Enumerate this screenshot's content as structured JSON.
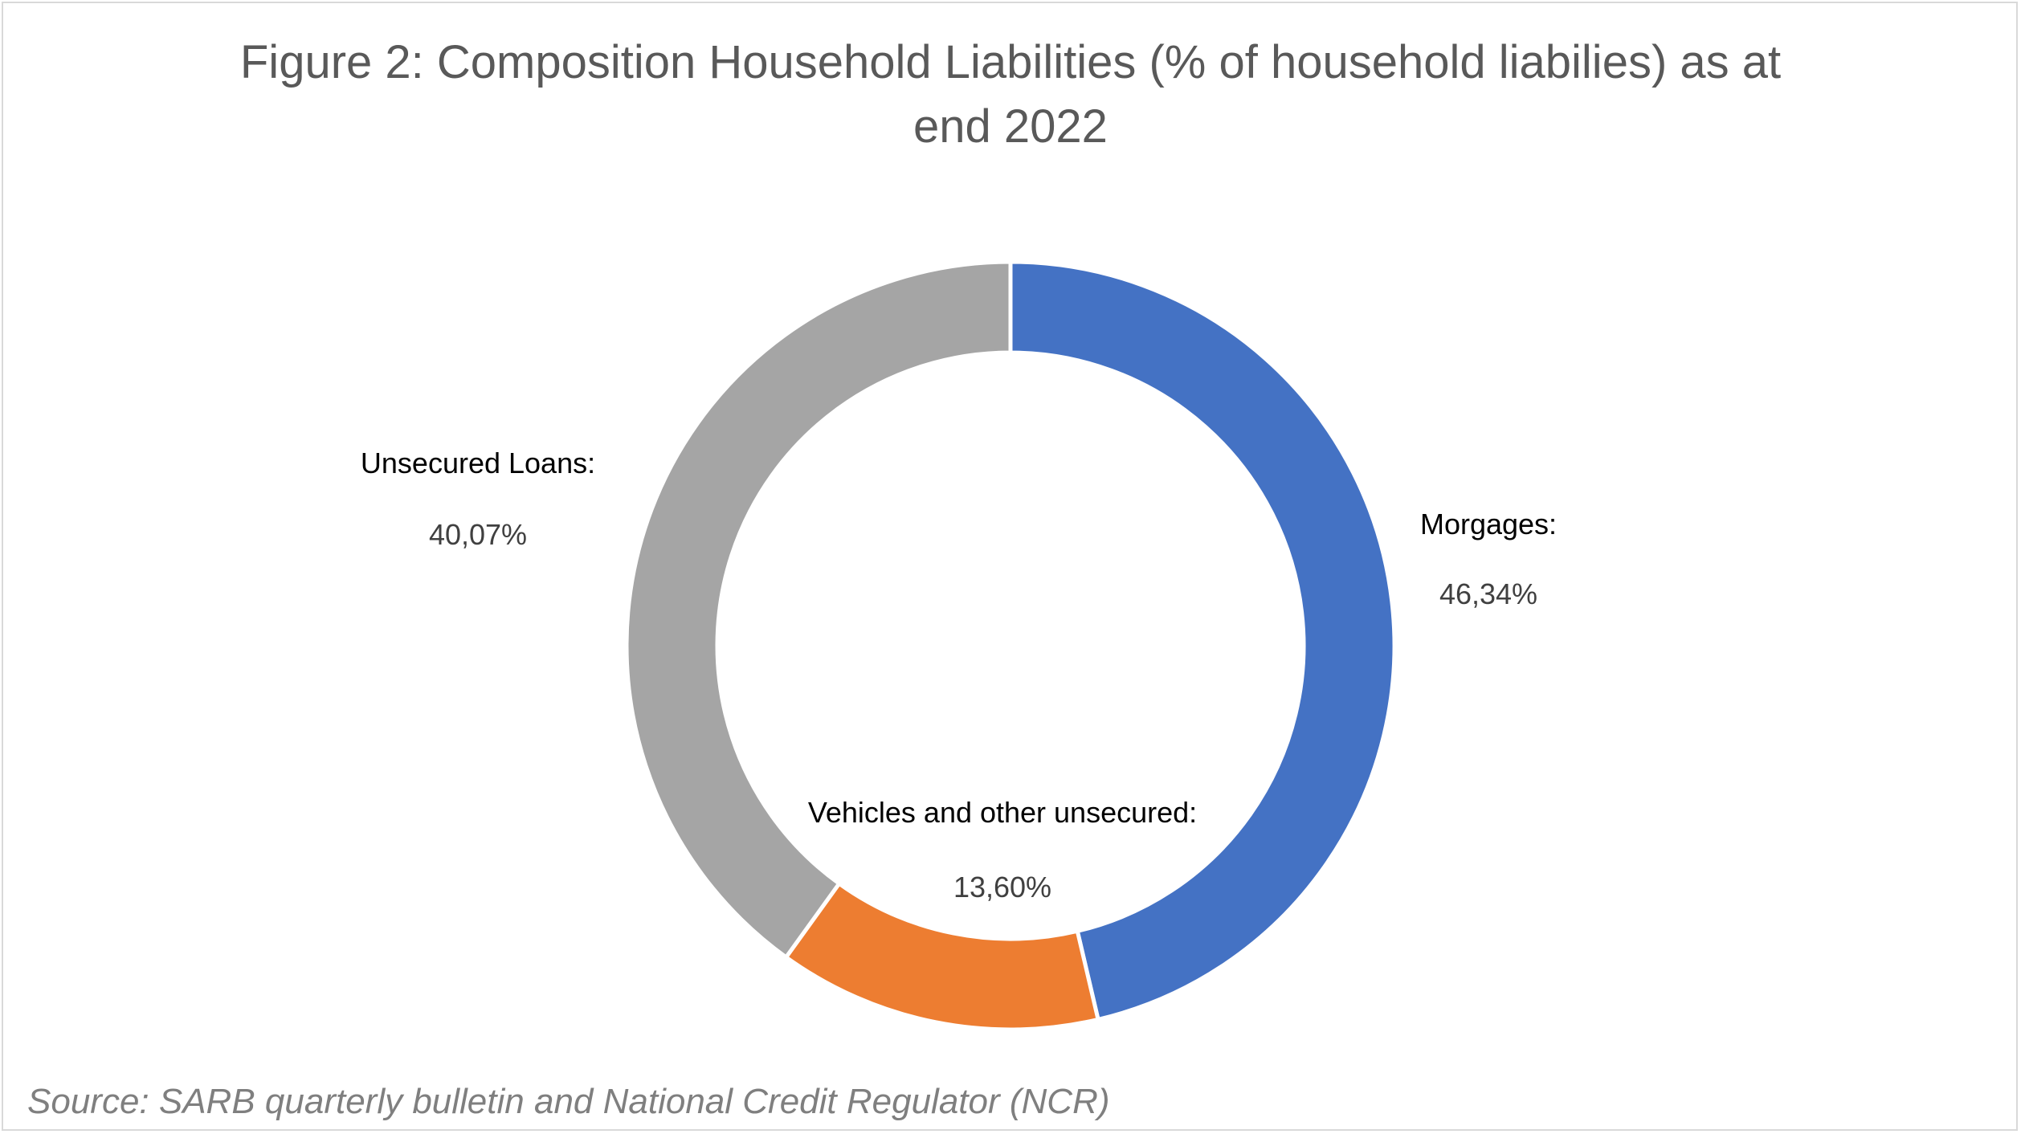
{
  "chart_data": {
    "type": "pie",
    "subtype": "doughnut",
    "title": "Figure 2: Composition Household Liabilities (% of household liabilies) as at\nend 2022",
    "categories": [
      "Morgages:",
      "Vehicles and other unsecured:",
      "Unsecured Loans:"
    ],
    "values": [
      46.34,
      13.6,
      40.07
    ],
    "value_labels": [
      "46,34%",
      "13,60%",
      "40,07%"
    ],
    "colors": [
      "#4472c4",
      "#ed7d31",
      "#a5a5a5"
    ],
    "legend": "none",
    "source": "Source: SARB quarterly bulletin and National Credit Regulator (NCR)"
  }
}
